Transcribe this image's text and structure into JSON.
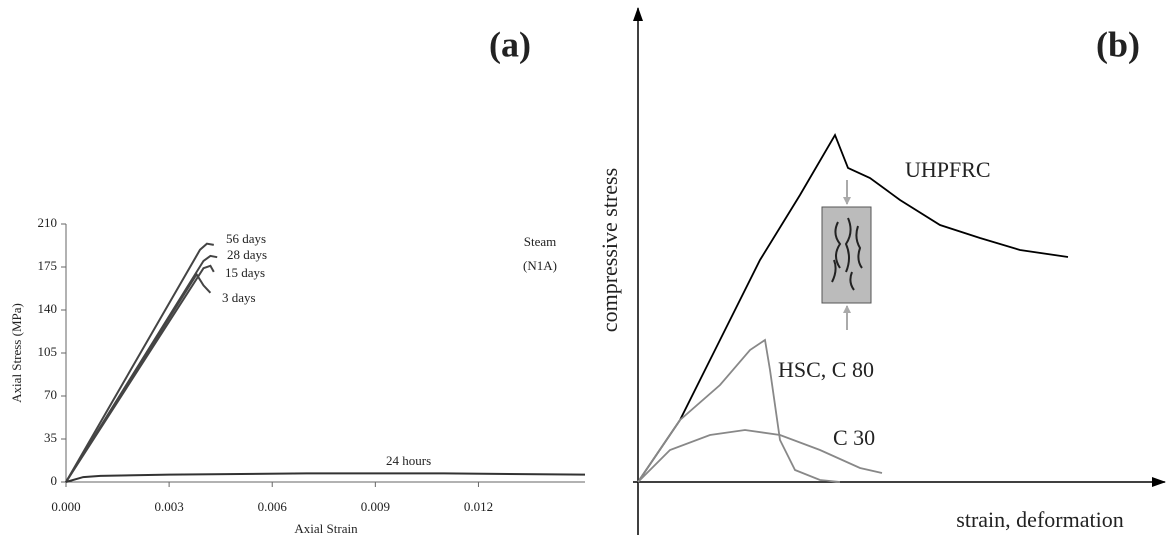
{
  "chart_data": [
    {
      "type": "line",
      "title": "(a)",
      "x_label": "Axial Strain",
      "y_label": "Axial Stress (MPa)",
      "annotations": [
        "Steam",
        "(N1A)"
      ],
      "xlim": [
        0,
        0.0151
      ],
      "ylim": [
        0,
        210
      ],
      "xticks": [
        {
          "value": 0,
          "label": "0.000"
        },
        {
          "value": 0.003,
          "label": "0.003"
        },
        {
          "value": 0.006,
          "label": "0.006"
        },
        {
          "value": 0.009,
          "label": "0.009"
        },
        {
          "value": 0.012,
          "label": "0.012"
        }
      ],
      "yticks": [
        0,
        35,
        70,
        105,
        140,
        175,
        210
      ],
      "series": [
        {
          "name": "56 days",
          "color": "#444444",
          "x": [
            0,
            0.0039,
            0.0041,
            0.0043
          ],
          "values": [
            0,
            189,
            194,
            193
          ]
        },
        {
          "name": "28 days",
          "color": "#444444",
          "x": [
            0,
            0.004,
            0.0042,
            0.0044
          ],
          "values": [
            0,
            180,
            184,
            183
          ]
        },
        {
          "name": "15 days",
          "color": "#444444",
          "x": [
            0,
            0.004,
            0.0042,
            0.0043
          ],
          "values": [
            0,
            174,
            176,
            171
          ]
        },
        {
          "name": "3 days",
          "color": "#444444",
          "x": [
            0,
            0.0038,
            0.004,
            0.0042
          ],
          "values": [
            0,
            169,
            160,
            154
          ]
        },
        {
          "name": "24 hours",
          "color": "#333333",
          "x": [
            0,
            0.0005,
            0.001,
            0.003,
            0.007,
            0.011,
            0.0151
          ],
          "values": [
            0,
            4,
            5,
            6,
            7,
            7,
            6
          ]
        }
      ]
    },
    {
      "type": "line",
      "title": "(b)",
      "x_label": "strain, deformation",
      "y_label": "compressive stress",
      "xlim": [
        0,
        100
      ],
      "ylim": [
        0,
        100
      ],
      "series": [
        {
          "name": "UHPFRC",
          "color": "#000000",
          "x": [
            0,
            8.4,
            16.4,
            24.4,
            32.4,
            39.4,
            42,
            46.4,
            52.4,
            60.4,
            68.4,
            76.4,
            86
          ],
          "values": [
            0,
            15.5,
            35.5,
            55.5,
            71.75,
            86.75,
            78.5,
            76,
            70.5,
            64.25,
            61,
            58,
            56.25
          ]
        },
        {
          "name": "HSC, C 80",
          "color": "#888888",
          "x": [
            0,
            8.4,
            16.4,
            22.4,
            25.4,
            26.4,
            28.4,
            31.4,
            36.4,
            40.4
          ],
          "values": [
            0,
            15.5,
            24.25,
            33,
            35.5,
            28,
            10.5,
            3,
            0.5,
            0
          ]
        },
        {
          "name": "C 30",
          "color": "#888888",
          "x": [
            0,
            6.4,
            14.4,
            21.4,
            28.4,
            36.4,
            44.4,
            48.8
          ],
          "values": [
            0,
            8,
            11.75,
            13,
            11.75,
            8,
            3.5,
            2.25
          ]
        }
      ]
    }
  ]
}
